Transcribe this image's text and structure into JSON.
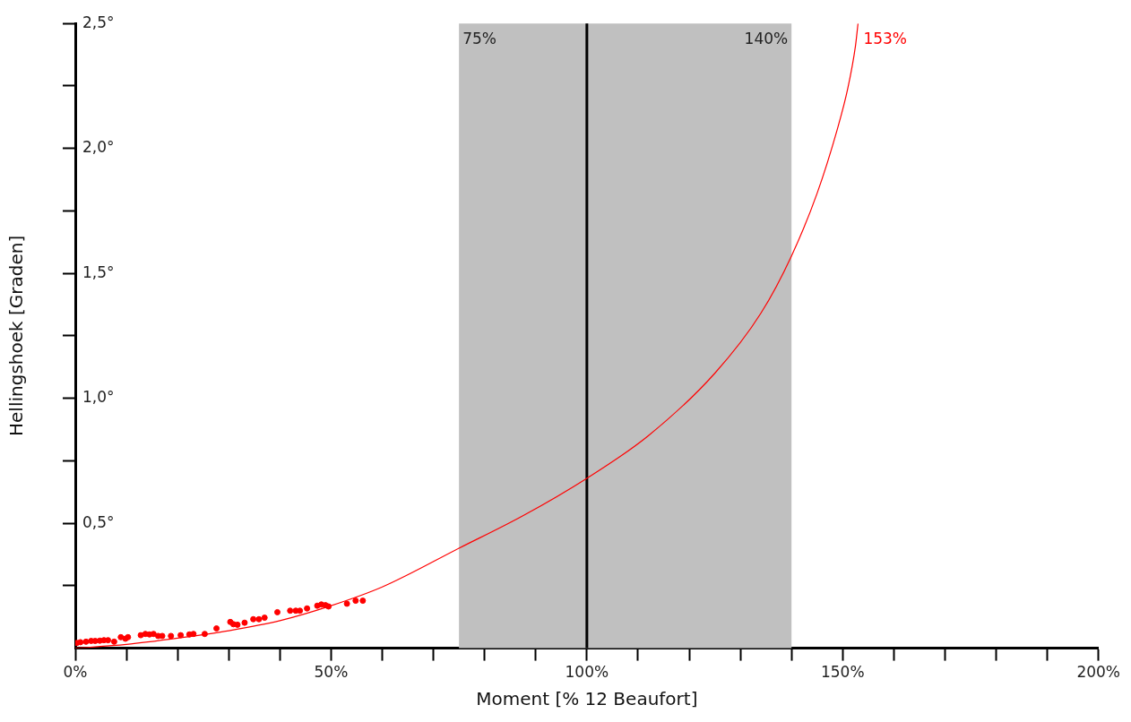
{
  "chart_data": {
    "type": "scatter",
    "xlabel": "Moment [% 12 Beaufort]",
    "ylabel": "Hellingshoek [Graden]",
    "xlim": [
      0,
      200
    ],
    "ylim": [
      0,
      2.5
    ],
    "xticks": [
      {
        "value": 0,
        "label": "0%"
      },
      {
        "value": 10,
        "label": null
      },
      {
        "value": 20,
        "label": null
      },
      {
        "value": 30,
        "label": null
      },
      {
        "value": 40,
        "label": null
      },
      {
        "value": 50,
        "label": "50%"
      },
      {
        "value": 60,
        "label": null
      },
      {
        "value": 70,
        "label": null
      },
      {
        "value": 80,
        "label": null
      },
      {
        "value": 90,
        "label": null
      },
      {
        "value": 100,
        "label": "100%"
      },
      {
        "value": 110,
        "label": null
      },
      {
        "value": 120,
        "label": null
      },
      {
        "value": 130,
        "label": null
      },
      {
        "value": 140,
        "label": null
      },
      {
        "value": 150,
        "label": "150%"
      },
      {
        "value": 160,
        "label": null
      },
      {
        "value": 170,
        "label": null
      },
      {
        "value": 180,
        "label": null
      },
      {
        "value": 190,
        "label": null
      },
      {
        "value": 200,
        "label": "200%"
      }
    ],
    "yticks": [
      {
        "value": 0.25,
        "label": null
      },
      {
        "value": 0.5,
        "label": "0,5°"
      },
      {
        "value": 0.75,
        "label": null
      },
      {
        "value": 1,
        "label": "1,0°"
      },
      {
        "value": 1.25,
        "label": null
      },
      {
        "value": 1.5,
        "label": "1,5°"
      },
      {
        "value": 1.75,
        "label": null
      },
      {
        "value": 2,
        "label": "2,0°"
      },
      {
        "value": 2.25,
        "label": null
      },
      {
        "value": 2.5,
        "label": "2,5°"
      }
    ],
    "grid": false,
    "legend": false,
    "series": [
      {
        "color": "#ff0000",
        "marker": "circle",
        "x": [
          0.3,
          1.0,
          2.1,
          3.1,
          3.9,
          4.8,
          5.6,
          6.4,
          7.6,
          8.9,
          9.8,
          10.3,
          12.8,
          13.7,
          14.5,
          15.3,
          16.2,
          17.0,
          18.7,
          20.6,
          22.3,
          23.1,
          25.3,
          27.6,
          30.3,
          30.9,
          31.7,
          33.1,
          34.8,
          35.9,
          37.0,
          39.5,
          42.0,
          43.1,
          43.9,
          45.3,
          47.3,
          48.1,
          48.9,
          49.5,
          53.1,
          54.8,
          56.2
        ],
        "values": [
          0.021,
          0.024,
          0.026,
          0.029,
          0.029,
          0.03,
          0.032,
          0.032,
          0.026,
          0.044,
          0.038,
          0.044,
          0.052,
          0.057,
          0.055,
          0.057,
          0.049,
          0.049,
          0.049,
          0.052,
          0.055,
          0.057,
          0.057,
          0.079,
          0.105,
          0.096,
          0.094,
          0.102,
          0.116,
          0.116,
          0.122,
          0.144,
          0.15,
          0.15,
          0.15,
          0.159,
          0.17,
          0.175,
          0.172,
          0.167,
          0.178,
          0.19,
          0.19
        ]
      },
      {
        "type": "line",
        "color": "#ff0000",
        "marker": "none",
        "line_style": "solid",
        "x": [
          0,
          10,
          20,
          30,
          40,
          50,
          60,
          75,
          87.5,
          100,
          112,
          125,
          134,
          140,
          145,
          149,
          151,
          152.5,
          153
        ],
        "values": [
          0,
          0.015,
          0.04,
          0.07,
          0.11,
          0.17,
          0.245,
          0.4,
          0.53,
          0.68,
          0.85,
          1.1,
          1.34,
          1.57,
          1.82,
          2.08,
          2.24,
          2.41,
          2.5
        ]
      }
    ],
    "bands": [
      {
        "axis": "x",
        "from": 75,
        "to": 140,
        "label": "75%",
        "color": "#c0c0c0"
      }
    ],
    "ref_lines": [
      {
        "axis": "x",
        "value": 100,
        "color": "#000000",
        "line_style": "solid"
      }
    ],
    "annotations": [
      {
        "text": "140%",
        "x": 140,
        "y": 2.5
      },
      {
        "text": "153%",
        "x": 153,
        "y": 2.5
      }
    ]
  }
}
